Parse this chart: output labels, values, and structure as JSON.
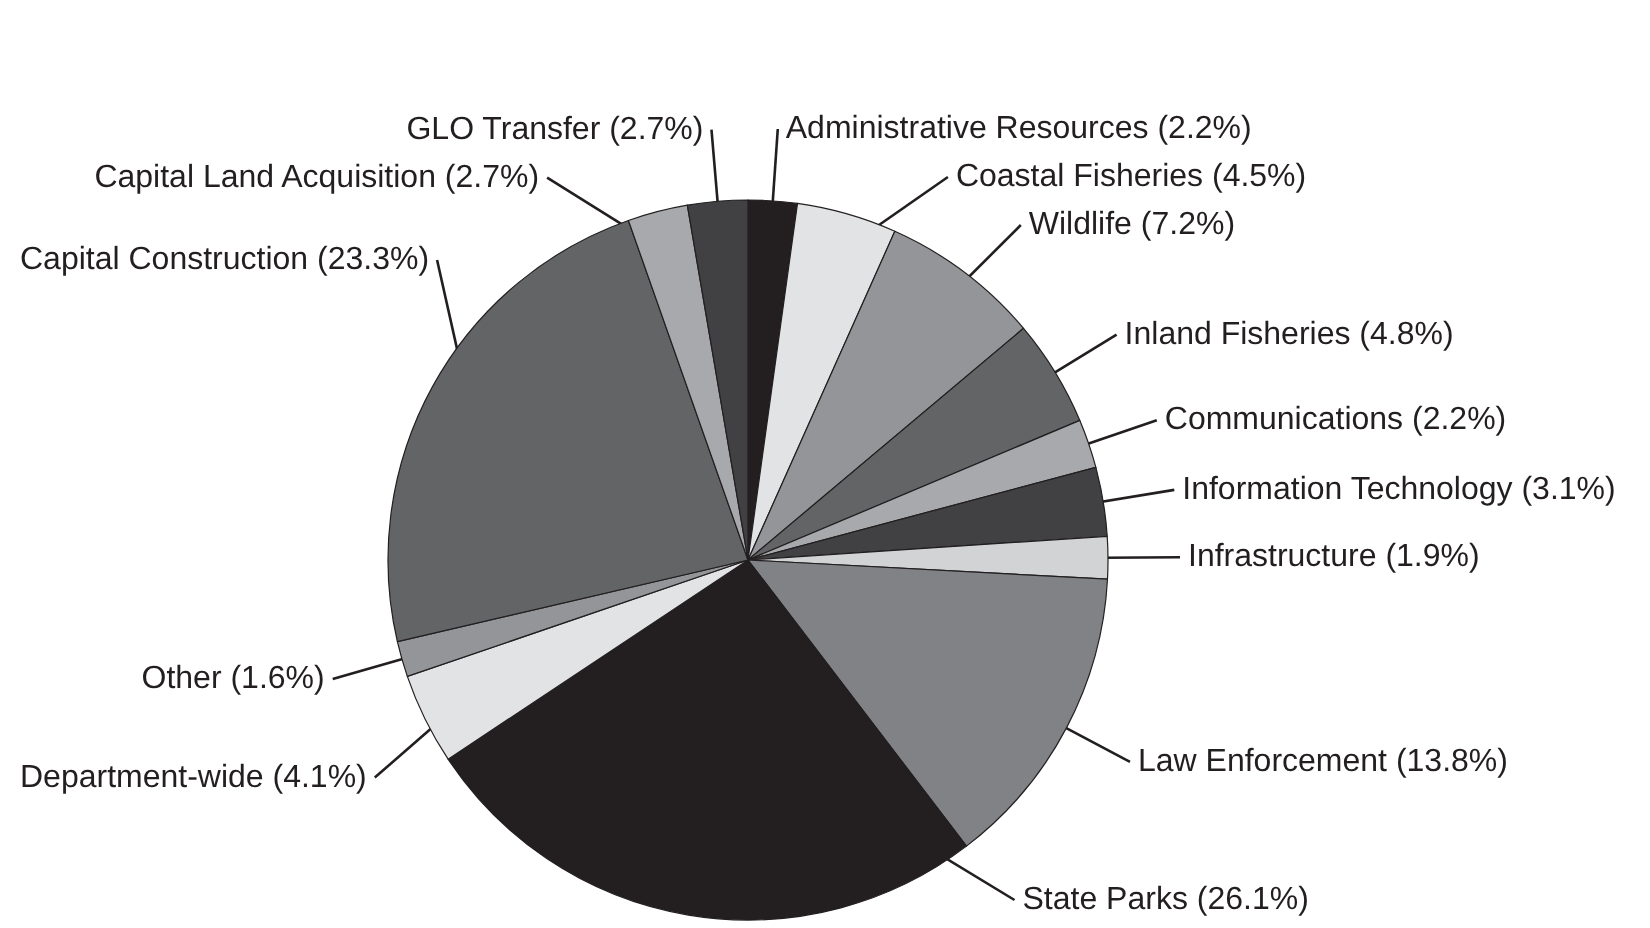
{
  "chart_data": {
    "type": "pie",
    "categories": [
      "Administrative Resources",
      "Coastal Fisheries",
      "Wildlife",
      "Inland Fisheries",
      "Communications",
      "Information Technology",
      "Infrastructure",
      "Law Enforcement",
      "State Parks",
      "Department-wide",
      "Other",
      "Capital Construction",
      "Capital Land Acquisition",
      "GLO Transfer"
    ],
    "values": [
      2.2,
      4.5,
      7.2,
      4.8,
      2.2,
      3.1,
      1.9,
      13.8,
      26.1,
      4.1,
      1.6,
      23.3,
      2.7,
      2.7
    ],
    "value_labels": [
      "(2.2%)",
      "(4.5%)",
      "(7.2%)",
      "(4.8%)",
      "(2.2%)",
      "(3.1%)",
      "(1.9%)",
      "(13.8%)",
      "(26.1%)",
      "(4.1%)",
      "(1.6%)",
      "(23.3%)",
      "(2.7%)",
      "(2.7%)"
    ],
    "colors": [
      "#231f20",
      "#e2e3e4",
      "#939598",
      "#636466",
      "#a7a9ac",
      "#414042",
      "#d1d3d4",
      "#808285",
      "#231f20",
      "#e2e3e4",
      "#939598",
      "#636466",
      "#a7a9ac",
      "#414042"
    ],
    "legend": false
  }
}
